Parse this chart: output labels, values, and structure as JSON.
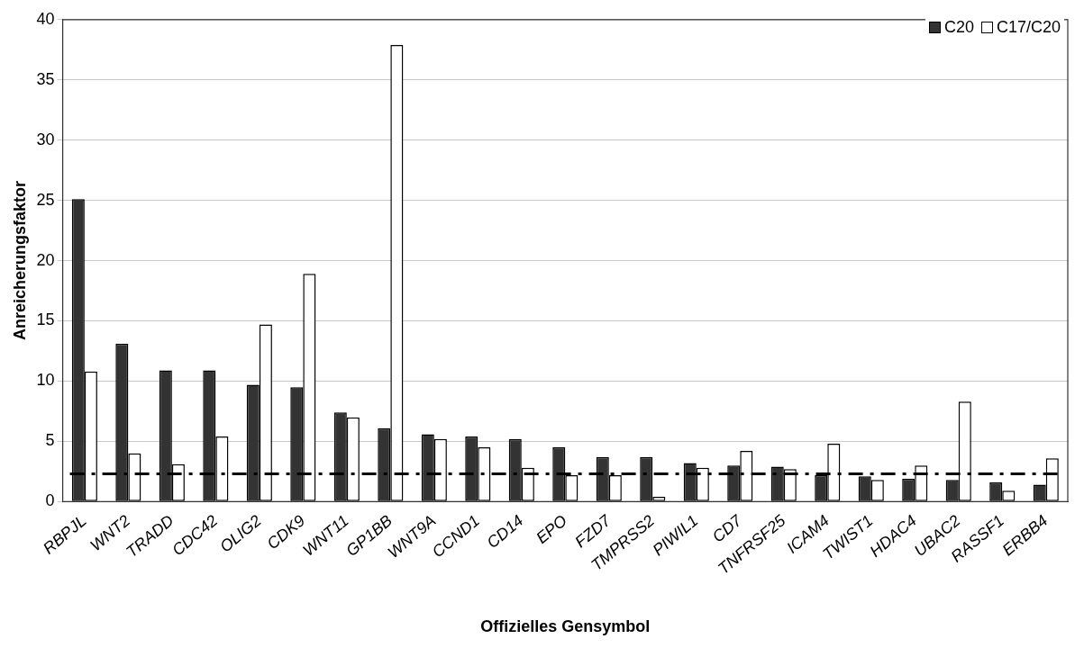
{
  "chart_data": {
    "type": "bar",
    "xlabel": "Offizielles Gensymbol",
    "ylabel": "Anreicherungsfaktor",
    "categories": [
      "RBPJL",
      "WNT2",
      "TRADD",
      "CDC42",
      "OLIG2",
      "CDK9",
      "WNT11",
      "GP1BB",
      "WNT9A",
      "CCND1",
      "CD14",
      "EPO",
      "FZD7",
      "TMPRSS2",
      "PIWIL1",
      "CD7",
      "TNFRSF25",
      "ICAM4",
      "TWIST1",
      "HDAC4",
      "UBAC2",
      "RASSF1",
      "ERBB4"
    ],
    "series": [
      {
        "name": "C20",
        "color": "#333333",
        "values": [
          25.1,
          13.1,
          10.9,
          10.9,
          9.7,
          9.5,
          7.4,
          6.1,
          5.6,
          5.4,
          5.2,
          4.5,
          3.7,
          3.7,
          3.2,
          3.0,
          2.9,
          2.2,
          2.1,
          1.9,
          1.8,
          1.6,
          1.4
        ]
      },
      {
        "name": "C17/C20",
        "color": "#ffffff",
        "values": [
          10.8,
          4.0,
          3.1,
          5.4,
          14.7,
          18.9,
          7.0,
          37.9,
          5.2,
          4.5,
          2.8,
          2.2,
          2.2,
          0.4,
          2.8,
          4.2,
          2.7,
          4.8,
          1.8,
          3.0,
          8.3,
          0.9,
          3.6
        ]
      }
    ],
    "ylim": [
      0,
      40
    ],
    "yticks": [
      0,
      5,
      10,
      15,
      20,
      25,
      30,
      35,
      40
    ],
    "grid": "y",
    "legend": "top right",
    "ref_lines": [
      {
        "axis": "y",
        "value": 2.3,
        "color": "#000000",
        "line_style": "dashdot"
      }
    ]
  }
}
